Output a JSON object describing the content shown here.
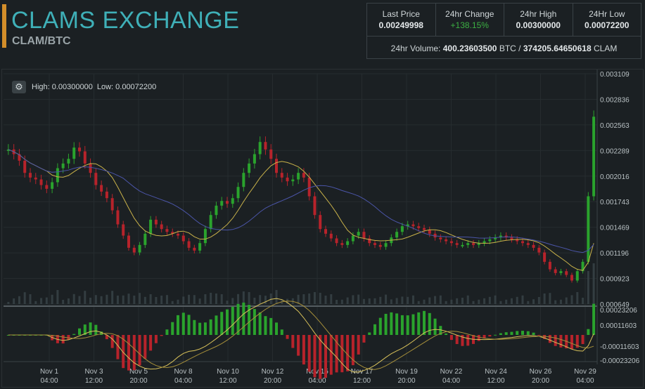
{
  "header": {
    "title": "CLAMS EXCHANGE",
    "pair": "CLAM/BTC"
  },
  "stats": [
    {
      "label": "Last Price",
      "value": "0.00249998",
      "positive": false
    },
    {
      "label": "24hr Change",
      "value": "+138.15%",
      "positive": true
    },
    {
      "label": "24hr High",
      "value": "0.00300000",
      "positive": false
    },
    {
      "label": "24Hr Low",
      "value": "0.00072200",
      "positive": false
    }
  ],
  "volume": {
    "label": "24hr Volume:",
    "btc": "400.23603500",
    "btc_unit": "BTC /",
    "clam": "374205.64650618",
    "clam_unit": "CLAM"
  },
  "chart_info": {
    "high": "High: 0.00300000",
    "low": "Low: 0.00072200"
  },
  "chart_data": {
    "type": "candlestick",
    "price_ticks": [
      "0.003109",
      "0.002836",
      "0.002563",
      "0.002289",
      "0.002016",
      "0.001743",
      "0.001469",
      "0.001196",
      "0.000923",
      "0.000649"
    ],
    "macd_ticks": [
      "0.00023206",
      "0.00011603",
      "-0.00011603",
      "-0.00023206"
    ],
    "x_ticks": [
      {
        "d": "Nov 1",
        "t": "04:00"
      },
      {
        "d": "Nov 3",
        "t": "12:00"
      },
      {
        "d": "Nov 5",
        "t": "20:00"
      },
      {
        "d": "Nov 8",
        "t": "04:00"
      },
      {
        "d": "Nov 10",
        "t": "12:00"
      },
      {
        "d": "Nov 12",
        "t": "20:00"
      },
      {
        "d": "Nov 15",
        "t": "04:00"
      },
      {
        "d": "Nov 17",
        "t": "12:00"
      },
      {
        "d": "Nov 19",
        "t": "20:00"
      },
      {
        "d": "Nov 22",
        "t": "04:00"
      },
      {
        "d": "Nov 24",
        "t": "12:00"
      },
      {
        "d": "Nov 26",
        "t": "20:00"
      },
      {
        "d": "Nov 29",
        "t": "04:00"
      }
    ],
    "closes": [
      0.0023,
      0.00225,
      0.00218,
      0.00205,
      0.002,
      0.00198,
      0.00192,
      0.00188,
      0.00195,
      0.0021,
      0.00215,
      0.0022,
      0.00232,
      0.00228,
      0.00215,
      0.00205,
      0.00192,
      0.00185,
      0.00178,
      0.00165,
      0.0015,
      0.00138,
      0.00125,
      0.0012,
      0.00128,
      0.0014,
      0.00155,
      0.0015,
      0.00145,
      0.00142,
      0.0014,
      0.00138,
      0.00132,
      0.00125,
      0.00122,
      0.0013,
      0.00145,
      0.0016,
      0.0017,
      0.00175,
      0.00172,
      0.00178,
      0.0019,
      0.00205,
      0.00215,
      0.00225,
      0.00238,
      0.0023,
      0.0022,
      0.00205,
      0.002,
      0.00196,
      0.00198,
      0.00205,
      0.002,
      0.0018,
      0.0016,
      0.00145,
      0.0014,
      0.00135,
      0.0013,
      0.00128,
      0.00132,
      0.00138,
      0.00142,
      0.00135,
      0.0013,
      0.00128,
      0.00126,
      0.0013,
      0.00136,
      0.00142,
      0.00148,
      0.0015,
      0.00148,
      0.00146,
      0.00144,
      0.0014,
      0.00136,
      0.00134,
      0.00132,
      0.0013,
      0.00128,
      0.00128,
      0.0013,
      0.00128,
      0.0013,
      0.00132,
      0.00134,
      0.00136,
      0.00138,
      0.00136,
      0.00134,
      0.00132,
      0.0013,
      0.00128,
      0.00125,
      0.0012,
      0.0011,
      0.00102,
      0.00098,
      0.001,
      0.00096,
      0.0009,
      0.001,
      0.0011,
      0.0018,
      0.00265
    ]
  }
}
